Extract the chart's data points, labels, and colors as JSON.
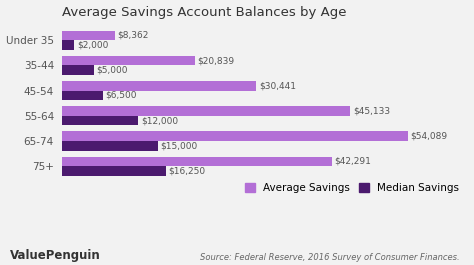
{
  "title": "Average Savings Account Balances by Age",
  "categories": [
    "Under 35",
    "35-44",
    "45-54",
    "55-64",
    "65-74",
    "75+"
  ],
  "average_savings": [
    8362,
    20839,
    30441,
    45133,
    54089,
    42291
  ],
  "median_savings": [
    2000,
    5000,
    6500,
    12000,
    15000,
    16250
  ],
  "average_labels": [
    "$8,362",
    "$20,839",
    "$30,441",
    "$45,133",
    "$54,089",
    "$42,291"
  ],
  "median_labels": [
    "$2,000",
    "$5,000",
    "$6,500",
    "$12,000",
    "$15,000",
    "$16,250"
  ],
  "avg_color": "#b36fd6",
  "med_color": "#4b1a6e",
  "legend_avg": "Average Savings",
  "legend_med": "Median Savings",
  "source_text": "Source: Federal Reserve, 2016 Survey of Consumer Finances.",
  "brand_text": "ValuePenguin",
  "background_color": "#f2f2f2",
  "xlim": [
    0,
    63000
  ],
  "bar_height": 0.38,
  "title_fontsize": 9.5,
  "label_fontsize": 6.5,
  "tick_fontsize": 7.5,
  "legend_fontsize": 7.5
}
